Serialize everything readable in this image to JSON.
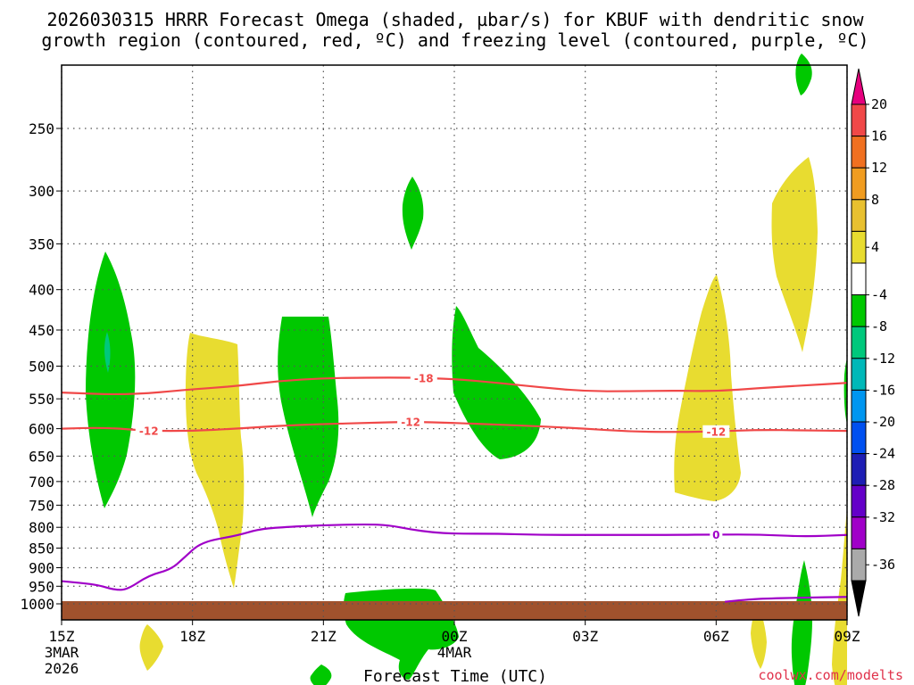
{
  "chart_data": {
    "type": "time-height contour",
    "title_line1": "2026030315 HRRR Forecast Omega (shaded, µbar/s) for KBUF with dendritic snow",
    "title_line2": "growth region (contoured, red, ºC) and freezing level (contoured, purple, ºC)",
    "xlabel": "Forecast Time (UTC)",
    "credit": "coolwx.com/modelts",
    "x_ticks": [
      {
        "hour": 0,
        "label": "15Z",
        "sub1": "3MAR",
        "sub2": "2026"
      },
      {
        "hour": 3,
        "label": "18Z",
        "sub1": "",
        "sub2": ""
      },
      {
        "hour": 6,
        "label": "21Z",
        "sub1": "",
        "sub2": ""
      },
      {
        "hour": 9,
        "label": "00Z",
        "sub1": "4MAR",
        "sub2": ""
      },
      {
        "hour": 12,
        "label": "03Z",
        "sub1": "",
        "sub2": ""
      },
      {
        "hour": 15,
        "label": "06Z",
        "sub1": "",
        "sub2": ""
      },
      {
        "hour": 18,
        "label": "09Z",
        "sub1": "",
        "sub2": ""
      }
    ],
    "x_range_hours": [
      0,
      18
    ],
    "y_levels_hpa": [
      "250",
      "300",
      "350",
      "400",
      "450",
      "500",
      "550",
      "600",
      "650",
      "700",
      "750",
      "800",
      "850",
      "900",
      "950",
      "1000"
    ],
    "y_range_hpa": [
      200,
      1050
    ],
    "colorbar": {
      "labels": [
        "20",
        "16",
        "12",
        "8",
        "4",
        "-4",
        "-8",
        "-12",
        "-16",
        "-20",
        "-24",
        "-28",
        "-32",
        "-36"
      ],
      "colors": [
        "#e6007e",
        "#f04848",
        "#f07020",
        "#f09c20",
        "#e8c030",
        "#e8dc30",
        "#ffffff",
        "#00c800",
        "#00c87c",
        "#00b8b8",
        "#0096f0",
        "#0050f0",
        "#1e1eb4",
        "#6400c8",
        "#a000c8",
        "#aaaaaa",
        "#000000"
      ]
    },
    "contours": {
      "dgz_minus18": {
        "label": "-18",
        "color": "#f04848",
        "x": [
          0,
          1.5,
          3,
          4,
          5,
          6,
          7,
          8,
          9,
          10,
          11,
          12,
          13,
          14,
          15,
          16,
          17,
          18
        ],
        "p": [
          540,
          544,
          535,
          530,
          522,
          518,
          517,
          517,
          519,
          525,
          532,
          538,
          538,
          537,
          538,
          533,
          529,
          525
        ]
      },
      "dgz_minus12": {
        "label": "-12",
        "color": "#f04848",
        "x": [
          0,
          1,
          2,
          3,
          4,
          5,
          6,
          7,
          8,
          9,
          10,
          11,
          12,
          13,
          14,
          15,
          16,
          17,
          18
        ],
        "p": [
          600,
          598,
          604,
          604,
          600,
          595,
          592,
          590,
          588,
          590,
          593,
          596,
          600,
          605,
          606,
          605,
          602,
          603,
          604
        ]
      },
      "freezing_upper": {
        "label": "0",
        "color": "#a000c8",
        "x": [
          0,
          0.8,
          1.2,
          1.5,
          2,
          2.5,
          2.8,
          3.2,
          4,
          4.5,
          5,
          6,
          7,
          7.5,
          8,
          8.5,
          9,
          10,
          11,
          12,
          13,
          14,
          15,
          16,
          17,
          18
        ],
        "p": [
          936,
          945,
          960,
          960,
          920,
          905,
          875,
          835,
          820,
          805,
          800,
          795,
          793,
          795,
          805,
          812,
          815,
          815,
          818,
          818,
          818,
          818,
          817,
          817,
          822,
          818
        ]
      },
      "freezing_lower": {
        "label": "0",
        "color": "#a000c8",
        "x": [
          15.2,
          15.5,
          16,
          17,
          18
        ],
        "p": [
          994,
          990,
          985,
          982,
          980
        ]
      }
    },
    "omega_shading_note": "green = -8 to -4 µbar/s (rising), yellow = 4 to 8 µbar/s (sinking), brown = below ground",
    "ground_level_hpa": 1000
  }
}
